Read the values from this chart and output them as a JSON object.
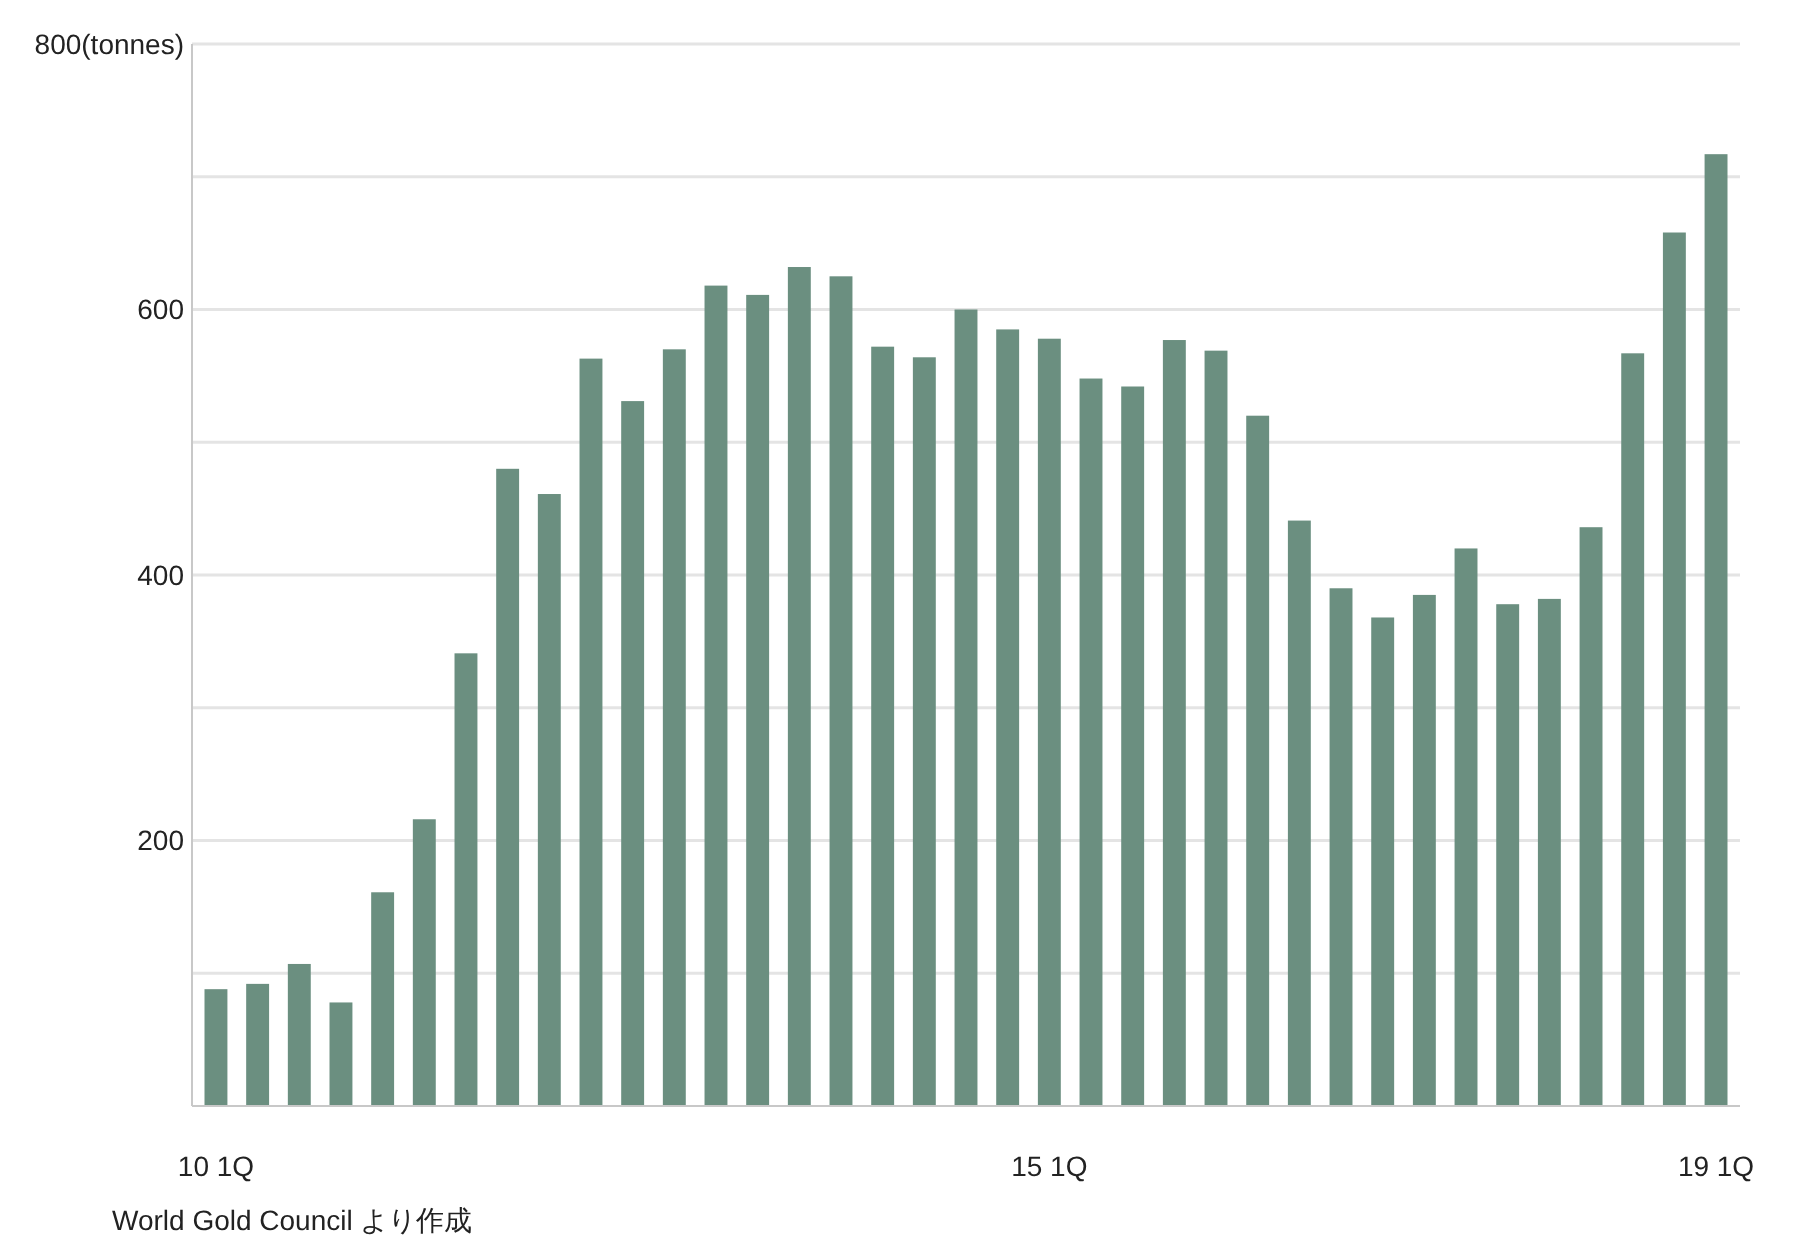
{
  "chart_data": {
    "type": "bar",
    "categories": [
      "10 1Q",
      null,
      null,
      null,
      null,
      null,
      null,
      null,
      null,
      null,
      null,
      null,
      null,
      null,
      null,
      null,
      null,
      null,
      null,
      null,
      "15 1Q",
      null,
      null,
      null,
      null,
      null,
      null,
      null,
      null,
      null,
      null,
      null,
      null,
      null,
      null,
      null,
      "19 1Q"
    ],
    "values": [
      88,
      92,
      107,
      78,
      161,
      216,
      341,
      480,
      461,
      563,
      531,
      570,
      618,
      611,
      632,
      625,
      572,
      564,
      600,
      585,
      578,
      548,
      542,
      577,
      569,
      520,
      441,
      390,
      368,
      385,
      420,
      378,
      382,
      436,
      567,
      658,
      717
    ],
    "color": "#6b8f80",
    "ylim": [
      0,
      800
    ],
    "yticks": [
      {
        "value": 100,
        "label": null
      },
      {
        "value": 200,
        "label": "200"
      },
      {
        "value": 300,
        "label": null
      },
      {
        "value": 400,
        "label": "400"
      },
      {
        "value": 500,
        "label": null
      },
      {
        "value": 600,
        "label": "600"
      },
      {
        "value": 700,
        "label": null
      },
      {
        "value": 800,
        "label": "800(tonnes)"
      }
    ],
    "grid": "y",
    "annotations": [
      "World Gold Council より作成"
    ]
  }
}
